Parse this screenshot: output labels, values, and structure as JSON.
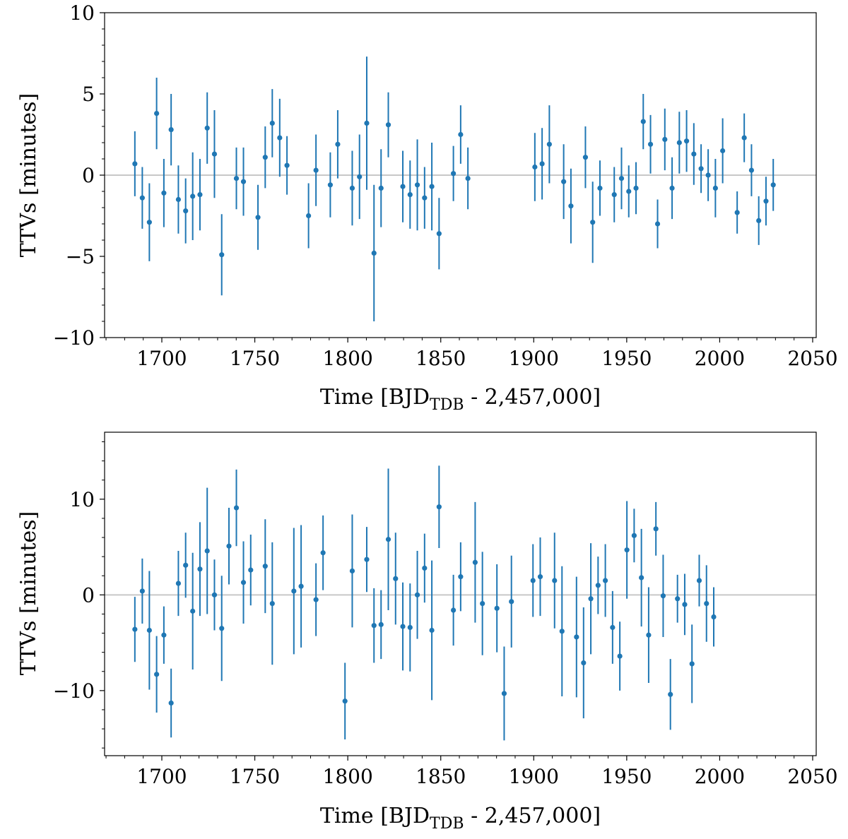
{
  "colors": {
    "series": "#1f77b4",
    "zero_line": "#c8c8c8",
    "axes": "#000000"
  },
  "chart_data": [
    {
      "type": "scatter",
      "name": "top",
      "xlabel": {
        "main": "Time [BJD",
        "sub": "TDB",
        "rest": " - 2,457,000]"
      },
      "ylabel": "TTVs [minutes]",
      "xlim": [
        1668,
        2052
      ],
      "ylim": [
        -10,
        10
      ],
      "xticks": [
        1700,
        1750,
        1800,
        1850,
        1900,
        1950,
        2000,
        2050
      ],
      "xtick_labels": [
        "1700",
        "1750",
        "1800",
        "1850",
        "1900",
        "1950",
        "2000",
        "2050"
      ],
      "yticks": [
        -10,
        -5,
        0,
        5,
        10
      ],
      "ytick_labels": [
        "−10",
        "−5",
        "0",
        "5",
        "10"
      ],
      "hline": 0,
      "points": [
        {
          "x": 1685.5,
          "y": 0.7,
          "err": 2.0
        },
        {
          "x": 1689.5,
          "y": -1.4,
          "err": 1.9
        },
        {
          "x": 1693.3,
          "y": -2.9,
          "err": 2.4
        },
        {
          "x": 1697.2,
          "y": 3.8,
          "err": 2.2
        },
        {
          "x": 1701.1,
          "y": -1.1,
          "err": 2.1
        },
        {
          "x": 1705.0,
          "y": 2.8,
          "err": 2.2
        },
        {
          "x": 1708.9,
          "y": -1.5,
          "err": 2.1
        },
        {
          "x": 1712.8,
          "y": -2.2,
          "err": 2.0
        },
        {
          "x": 1716.6,
          "y": -1.3,
          "err": 2.7
        },
        {
          "x": 1720.5,
          "y": -1.2,
          "err": 2.2
        },
        {
          "x": 1724.4,
          "y": 2.9,
          "err": 2.2
        },
        {
          "x": 1728.3,
          "y": 1.3,
          "err": 2.7
        },
        {
          "x": 1732.2,
          "y": -4.9,
          "err": 2.5
        },
        {
          "x": 1740.1,
          "y": -0.2,
          "err": 1.9
        },
        {
          "x": 1743.9,
          "y": -0.4,
          "err": 2.1
        },
        {
          "x": 1751.7,
          "y": -2.6,
          "err": 2.0
        },
        {
          "x": 1755.6,
          "y": 1.1,
          "err": 1.9
        },
        {
          "x": 1759.4,
          "y": 3.2,
          "err": 2.1
        },
        {
          "x": 1763.4,
          "y": 2.3,
          "err": 2.4
        },
        {
          "x": 1767.3,
          "y": 0.6,
          "err": 1.8
        },
        {
          "x": 1778.9,
          "y": -2.5,
          "err": 2.0
        },
        {
          "x": 1782.9,
          "y": 0.3,
          "err": 2.2
        },
        {
          "x": 1790.6,
          "y": -0.6,
          "err": 2.0
        },
        {
          "x": 1794.6,
          "y": 1.9,
          "err": 2.1
        },
        {
          "x": 1802.4,
          "y": -0.8,
          "err": 2.3
        },
        {
          "x": 1806.3,
          "y": -0.1,
          "err": 2.6
        },
        {
          "x": 1810.2,
          "y": 3.2,
          "err": 4.1
        },
        {
          "x": 1814.1,
          "y": -4.8,
          "err": 4.2
        },
        {
          "x": 1817.9,
          "y": -0.8,
          "err": 2.4
        },
        {
          "x": 1821.8,
          "y": 3.1,
          "err": 2.0
        },
        {
          "x": 1829.6,
          "y": -0.7,
          "err": 2.2
        },
        {
          "x": 1833.5,
          "y": -1.2,
          "err": 2.1
        },
        {
          "x": 1837.4,
          "y": -0.6,
          "err": 2.8
        },
        {
          "x": 1841.3,
          "y": -1.4,
          "err": 1.9
        },
        {
          "x": 1845.2,
          "y": -0.7,
          "err": 2.7
        },
        {
          "x": 1849.1,
          "y": -3.6,
          "err": 2.2
        },
        {
          "x": 1856.8,
          "y": 0.1,
          "err": 1.7
        },
        {
          "x": 1860.7,
          "y": 2.5,
          "err": 1.8
        },
        {
          "x": 1864.6,
          "y": -0.2,
          "err": 1.9
        },
        {
          "x": 1900.6,
          "y": 0.5,
          "err": 2.1
        },
        {
          "x": 1904.5,
          "y": 0.7,
          "err": 2.2
        },
        {
          "x": 1908.4,
          "y": 1.9,
          "err": 2.4
        },
        {
          "x": 1916.1,
          "y": -0.4,
          "err": 2.3
        },
        {
          "x": 1920.0,
          "y": -1.9,
          "err": 2.3
        },
        {
          "x": 1927.8,
          "y": 1.1,
          "err": 1.9
        },
        {
          "x": 1931.7,
          "y": -2.9,
          "err": 2.5
        },
        {
          "x": 1935.6,
          "y": -0.8,
          "err": 1.7
        },
        {
          "x": 1943.3,
          "y": -1.2,
          "err": 1.7
        },
        {
          "x": 1947.2,
          "y": -0.2,
          "err": 1.9
        },
        {
          "x": 1951.1,
          "y": -1.0,
          "err": 1.6
        },
        {
          "x": 1955.0,
          "y": -0.8,
          "err": 1.6
        },
        {
          "x": 1958.9,
          "y": 3.3,
          "err": 1.7
        },
        {
          "x": 1962.8,
          "y": 1.9,
          "err": 1.8
        },
        {
          "x": 1966.6,
          "y": -3.0,
          "err": 1.5
        },
        {
          "x": 1970.5,
          "y": 2.2,
          "err": 1.9
        },
        {
          "x": 1974.4,
          "y": -0.8,
          "err": 1.9
        },
        {
          "x": 1978.3,
          "y": 2.0,
          "err": 1.9
        },
        {
          "x": 1982.2,
          "y": 2.1,
          "err": 1.9
        },
        {
          "x": 1986.1,
          "y": 1.3,
          "err": 1.9
        },
        {
          "x": 1990.0,
          "y": 0.4,
          "err": 1.5
        },
        {
          "x": 1993.8,
          "y": 0.0,
          "err": 1.6
        },
        {
          "x": 1997.7,
          "y": -0.8,
          "err": 1.8
        },
        {
          "x": 2001.6,
          "y": 1.5,
          "err": 2.0
        },
        {
          "x": 2009.4,
          "y": -2.3,
          "err": 1.3
        },
        {
          "x": 2013.2,
          "y": 2.3,
          "err": 1.5
        },
        {
          "x": 2017.1,
          "y": 0.3,
          "err": 1.6
        },
        {
          "x": 2021.0,
          "y": -2.8,
          "err": 1.5
        },
        {
          "x": 2024.9,
          "y": -1.6,
          "err": 1.5
        },
        {
          "x": 2028.8,
          "y": -0.6,
          "err": 1.6
        }
      ]
    },
    {
      "type": "scatter",
      "name": "bottom",
      "xlabel": {
        "main": "Time [BJD",
        "sub": "TDB",
        "rest": " - 2,457,000]"
      },
      "ylabel": "TTVs [minutes]",
      "xlim": [
        1668,
        2052
      ],
      "ylim": [
        -16.8,
        17.0
      ],
      "xticks": [
        1700,
        1750,
        1800,
        1850,
        1900,
        1950,
        2000,
        2050
      ],
      "xtick_labels": [
        "1700",
        "1750",
        "1800",
        "1850",
        "1900",
        "1950",
        "2000",
        "2050"
      ],
      "yticks": [
        -10,
        0,
        10
      ],
      "ytick_labels": [
        "−10",
        "0",
        "10"
      ],
      "hline": 0,
      "points": [
        {
          "x": 1685.5,
          "y": -3.6,
          "err": 3.4
        },
        {
          "x": 1689.5,
          "y": 0.4,
          "err": 3.4
        },
        {
          "x": 1693.3,
          "y": -3.7,
          "err": 6.2
        },
        {
          "x": 1697.2,
          "y": -8.3,
          "err": 4.0
        },
        {
          "x": 1701.1,
          "y": -4.2,
          "err": 3.0
        },
        {
          "x": 1705.0,
          "y": -11.3,
          "err": 3.6
        },
        {
          "x": 1708.9,
          "y": 1.2,
          "err": 3.4
        },
        {
          "x": 1712.8,
          "y": 3.1,
          "err": 3.4
        },
        {
          "x": 1716.6,
          "y": -1.7,
          "err": 6.1
        },
        {
          "x": 1720.5,
          "y": 2.7,
          "err": 4.9
        },
        {
          "x": 1724.4,
          "y": 4.6,
          "err": 6.6
        },
        {
          "x": 1728.3,
          "y": 0.0,
          "err": 3.7
        },
        {
          "x": 1732.2,
          "y": -3.5,
          "err": 5.5
        },
        {
          "x": 1736.1,
          "y": 5.1,
          "err": 4.0
        },
        {
          "x": 1740.1,
          "y": 9.1,
          "err": 4.0
        },
        {
          "x": 1743.9,
          "y": 1.3,
          "err": 4.3
        },
        {
          "x": 1747.8,
          "y": 2.6,
          "err": 3.7
        },
        {
          "x": 1755.6,
          "y": 3.0,
          "err": 4.9
        },
        {
          "x": 1759.4,
          "y": -0.9,
          "err": 6.4
        },
        {
          "x": 1771.0,
          "y": 0.4,
          "err": 6.6
        },
        {
          "x": 1774.9,
          "y": 0.9,
          "err": 6.4
        },
        {
          "x": 1782.9,
          "y": -0.5,
          "err": 3.8
        },
        {
          "x": 1786.7,
          "y": 4.4,
          "err": 3.9
        },
        {
          "x": 1798.5,
          "y": -11.1,
          "err": 4.0
        },
        {
          "x": 1802.4,
          "y": 2.5,
          "err": 5.9
        },
        {
          "x": 1810.2,
          "y": 3.7,
          "err": 3.4
        },
        {
          "x": 1814.1,
          "y": -3.2,
          "err": 3.9
        },
        {
          "x": 1817.9,
          "y": -3.1,
          "err": 3.6
        },
        {
          "x": 1821.8,
          "y": 5.8,
          "err": 7.4
        },
        {
          "x": 1825.7,
          "y": 1.7,
          "err": 4.8
        },
        {
          "x": 1829.6,
          "y": -3.3,
          "err": 4.6
        },
        {
          "x": 1833.5,
          "y": -3.4,
          "err": 4.6
        },
        {
          "x": 1837.4,
          "y": 0.0,
          "err": 4.6
        },
        {
          "x": 1841.3,
          "y": 2.8,
          "err": 3.6
        },
        {
          "x": 1845.2,
          "y": -3.7,
          "err": 7.3
        },
        {
          "x": 1849.1,
          "y": 9.2,
          "err": 4.3
        },
        {
          "x": 1856.8,
          "y": -1.6,
          "err": 3.7
        },
        {
          "x": 1860.7,
          "y": 1.9,
          "err": 3.6
        },
        {
          "x": 1868.5,
          "y": 3.4,
          "err": 6.3
        },
        {
          "x": 1872.4,
          "y": -0.9,
          "err": 5.4
        },
        {
          "x": 1880.2,
          "y": -1.4,
          "err": 4.6
        },
        {
          "x": 1884.1,
          "y": -10.3,
          "err": 4.9
        },
        {
          "x": 1888.0,
          "y": -0.7,
          "err": 4.8
        },
        {
          "x": 1899.6,
          "y": 1.5,
          "err": 3.8
        },
        {
          "x": 1903.5,
          "y": 1.9,
          "err": 4.1
        },
        {
          "x": 1911.2,
          "y": 1.5,
          "err": 5.0
        },
        {
          "x": 1915.2,
          "y": -3.8,
          "err": 6.8
        },
        {
          "x": 1923.0,
          "y": -4.4,
          "err": 6.3
        },
        {
          "x": 1926.8,
          "y": -7.1,
          "err": 5.8
        },
        {
          "x": 1930.7,
          "y": -0.4,
          "err": 5.8
        },
        {
          "x": 1934.6,
          "y": 1.0,
          "err": 3.0
        },
        {
          "x": 1938.5,
          "y": 1.5,
          "err": 3.8
        },
        {
          "x": 1942.4,
          "y": -3.4,
          "err": 3.8
        },
        {
          "x": 1946.3,
          "y": -6.4,
          "err": 3.6
        },
        {
          "x": 1950.1,
          "y": 4.7,
          "err": 5.1
        },
        {
          "x": 1954.0,
          "y": 6.2,
          "err": 2.8
        },
        {
          "x": 1957.9,
          "y": 1.8,
          "err": 5.1
        },
        {
          "x": 1961.8,
          "y": -4.2,
          "err": 5.0
        },
        {
          "x": 1965.7,
          "y": 6.9,
          "err": 2.8
        },
        {
          "x": 1969.6,
          "y": -0.1,
          "err": 4.3
        },
        {
          "x": 1973.5,
          "y": -10.4,
          "err": 3.7
        },
        {
          "x": 1977.3,
          "y": -0.4,
          "err": 2.5
        },
        {
          "x": 1981.2,
          "y": -1.0,
          "err": 3.2
        },
        {
          "x": 1985.1,
          "y": -7.2,
          "err": 4.1
        },
        {
          "x": 1989.0,
          "y": 1.5,
          "err": 2.7
        },
        {
          "x": 1992.9,
          "y": -0.9,
          "err": 4.0
        },
        {
          "x": 1996.8,
          "y": -2.3,
          "err": 3.1
        }
      ]
    }
  ]
}
